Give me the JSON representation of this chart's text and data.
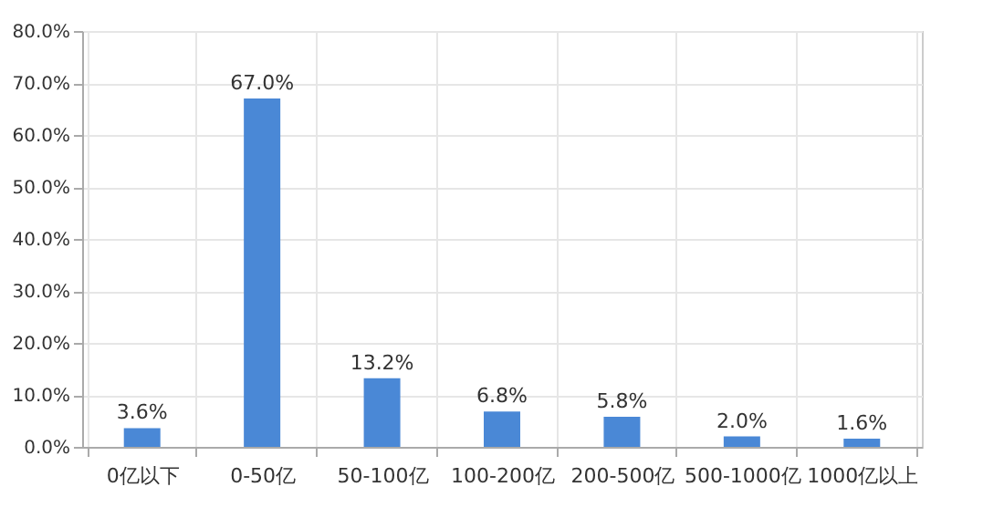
{
  "chart_data": {
    "type": "bar",
    "categories": [
      "0亿以下",
      "0-50亿",
      "50-100亿",
      "100-200亿",
      "200-500亿",
      "500-1000亿",
      "1000亿以上"
    ],
    "values": [
      3.6,
      67.0,
      13.2,
      6.8,
      5.8,
      2.0,
      1.6
    ],
    "value_labels": [
      "3.6%",
      "67.0%",
      "13.2%",
      "6.8%",
      "5.8%",
      "2.0%",
      "1.6%"
    ],
    "color": "#4a88d6",
    "ylim": [
      0,
      80
    ],
    "yticks": [
      {
        "value": 0,
        "label": "0.0%"
      },
      {
        "value": 10,
        "label": "10.0%"
      },
      {
        "value": 20,
        "label": "20.0%"
      },
      {
        "value": 30,
        "label": "30.0%"
      },
      {
        "value": 40,
        "label": "40.0%"
      },
      {
        "value": 50,
        "label": "50.0%"
      },
      {
        "value": 60,
        "label": "60.0%"
      },
      {
        "value": 70,
        "label": "70.0%"
      },
      {
        "value": 80,
        "label": "80.0%"
      }
    ],
    "grid": true
  }
}
